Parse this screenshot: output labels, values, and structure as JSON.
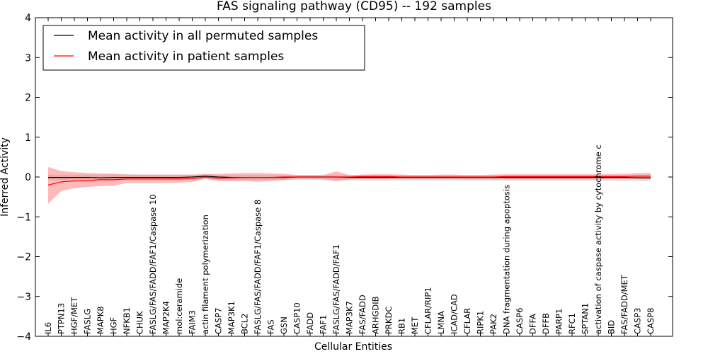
{
  "chart_data": {
    "type": "line",
    "title": "FAS signaling pathway (CD95) -- 192 samples",
    "xlabel": "Cellular Entities",
    "ylabel": "Inferred Activity",
    "ylim": [
      -4,
      4
    ],
    "yticks": [
      "4",
      "3",
      "2",
      "1",
      "0",
      "−1",
      "−2",
      "−3",
      "−4"
    ],
    "grid": false,
    "legend_position": "top-left",
    "categories": [
      "IL6",
      "PTPN13",
      "HGF/MET",
      "FASLG",
      "MAPK8",
      "HGF",
      "NFKB1",
      "CHUK",
      "FASLG/FAS/FADD/FAF1/Caspase 10",
      "MAP2K4",
      "mol:ceramide",
      "FAIM3",
      "actin filament polymerization",
      "CASP7",
      "MAP3K1",
      "BCL2",
      "FASLG/FAS/FADD/FAF1/Caspase 8",
      "FAS",
      "GSN",
      "CASP10",
      "FADD",
      "FAF1",
      "FASLG/FAS/FADD/FAF1",
      "MAP3K7",
      "FAS/FADD",
      "ARHGDIB",
      "PRKDC",
      "RB1",
      "MET",
      "CFLAR/RIP1",
      "LMNA",
      "ICAD/CAD",
      "CFLAR",
      "RIPK1",
      "PAK2",
      "DNA fragmentation during apoptosis",
      "CASP6",
      "DFFA",
      "DFFB",
      "PARP1",
      "RFC1",
      "SPTAN1",
      "activation of caspase activity by cytochrome c",
      "BID",
      "FAS/FADD/MET",
      "CASP3",
      "CASP8"
    ],
    "series": [
      {
        "name": "Mean activity in all permuted samples",
        "color": "#000000",
        "band_color": "#c8c8c8",
        "values": [
          -0.01,
          -0.01,
          -0.01,
          -0.01,
          -0.02,
          -0.01,
          -0.01,
          -0.01,
          -0.01,
          -0.01,
          -0.01,
          0.0,
          0.02,
          0.0,
          -0.01,
          -0.01,
          -0.01,
          -0.01,
          -0.01,
          0.0,
          0.0,
          0.0,
          0.0,
          -0.01,
          -0.01,
          -0.01,
          -0.01,
          -0.01,
          -0.01,
          -0.01,
          -0.01,
          -0.01,
          -0.01,
          -0.01,
          -0.01,
          -0.01,
          -0.01,
          -0.01,
          -0.01,
          -0.01,
          -0.01,
          -0.01,
          -0.01,
          -0.01,
          -0.01,
          -0.02,
          -0.02
        ],
        "upper": [
          0.06,
          0.06,
          0.06,
          0.06,
          0.06,
          0.07,
          0.07,
          0.06,
          0.06,
          0.06,
          0.06,
          0.06,
          0.07,
          0.05,
          0.05,
          0.05,
          0.05,
          0.05,
          0.05,
          0.05,
          0.05,
          0.05,
          0.05,
          0.05,
          0.05,
          0.05,
          0.05,
          0.05,
          0.05,
          0.05,
          0.05,
          0.05,
          0.05,
          0.05,
          0.05,
          0.05,
          0.05,
          0.05,
          0.05,
          0.05,
          0.05,
          0.05,
          0.05,
          0.05,
          0.05,
          0.05,
          0.05
        ],
        "lower": [
          -0.08,
          -0.08,
          -0.08,
          -0.08,
          -0.09,
          -0.08,
          -0.08,
          -0.08,
          -0.08,
          -0.08,
          -0.08,
          -0.07,
          -0.04,
          -0.07,
          -0.08,
          -0.08,
          -0.08,
          -0.08,
          -0.07,
          -0.07,
          -0.07,
          -0.07,
          -0.07,
          -0.08,
          -0.09,
          -0.09,
          -0.09,
          -0.09,
          -0.09,
          -0.09,
          -0.09,
          -0.09,
          -0.09,
          -0.09,
          -0.09,
          -0.09,
          -0.09,
          -0.09,
          -0.09,
          -0.09,
          -0.09,
          -0.09,
          -0.09,
          -0.09,
          -0.1,
          -0.1,
          -0.1
        ]
      },
      {
        "name": "Mean activity in patient samples",
        "color": "#ff0000",
        "band_color": "#ff8080",
        "values": [
          -0.2,
          -0.12,
          -0.1,
          -0.09,
          -0.07,
          -0.07,
          -0.05,
          -0.05,
          -0.05,
          -0.05,
          -0.05,
          -0.04,
          0.0,
          -0.03,
          -0.02,
          -0.01,
          -0.01,
          -0.01,
          0.0,
          0.0,
          0.0,
          0.0,
          0.0,
          0.0,
          0.01,
          0.01,
          0.01,
          0.0,
          0.0,
          0.0,
          0.0,
          0.0,
          0.0,
          0.0,
          0.0,
          0.01,
          0.01,
          0.01,
          0.01,
          0.01,
          0.01,
          0.01,
          0.01,
          0.01,
          0.01,
          0.02,
          0.02
        ],
        "upper": [
          0.25,
          0.15,
          0.12,
          0.1,
          0.09,
          0.08,
          0.06,
          0.06,
          0.06,
          0.06,
          0.06,
          0.06,
          0.07,
          0.08,
          0.09,
          0.1,
          0.1,
          0.09,
          0.08,
          0.05,
          0.05,
          0.05,
          0.14,
          0.05,
          0.06,
          0.07,
          0.07,
          0.06,
          0.05,
          0.05,
          0.06,
          0.06,
          0.05,
          0.05,
          0.06,
          0.07,
          0.07,
          0.07,
          0.07,
          0.07,
          0.07,
          0.07,
          0.07,
          0.07,
          0.08,
          0.1,
          0.1
        ],
        "lower": [
          -0.67,
          -0.35,
          -0.28,
          -0.25,
          -0.23,
          -0.22,
          -0.15,
          -0.15,
          -0.15,
          -0.15,
          -0.14,
          -0.12,
          -0.05,
          -0.1,
          -0.1,
          -0.1,
          -0.12,
          -0.1,
          -0.08,
          -0.05,
          -0.05,
          -0.06,
          -0.11,
          -0.06,
          -0.05,
          -0.05,
          -0.05,
          -0.05,
          -0.05,
          -0.05,
          -0.05,
          -0.05,
          -0.06,
          -0.06,
          -0.06,
          -0.06,
          -0.06,
          -0.06,
          -0.06,
          -0.06,
          -0.06,
          -0.06,
          -0.06,
          -0.05,
          -0.05,
          -0.05,
          -0.05
        ]
      }
    ]
  }
}
